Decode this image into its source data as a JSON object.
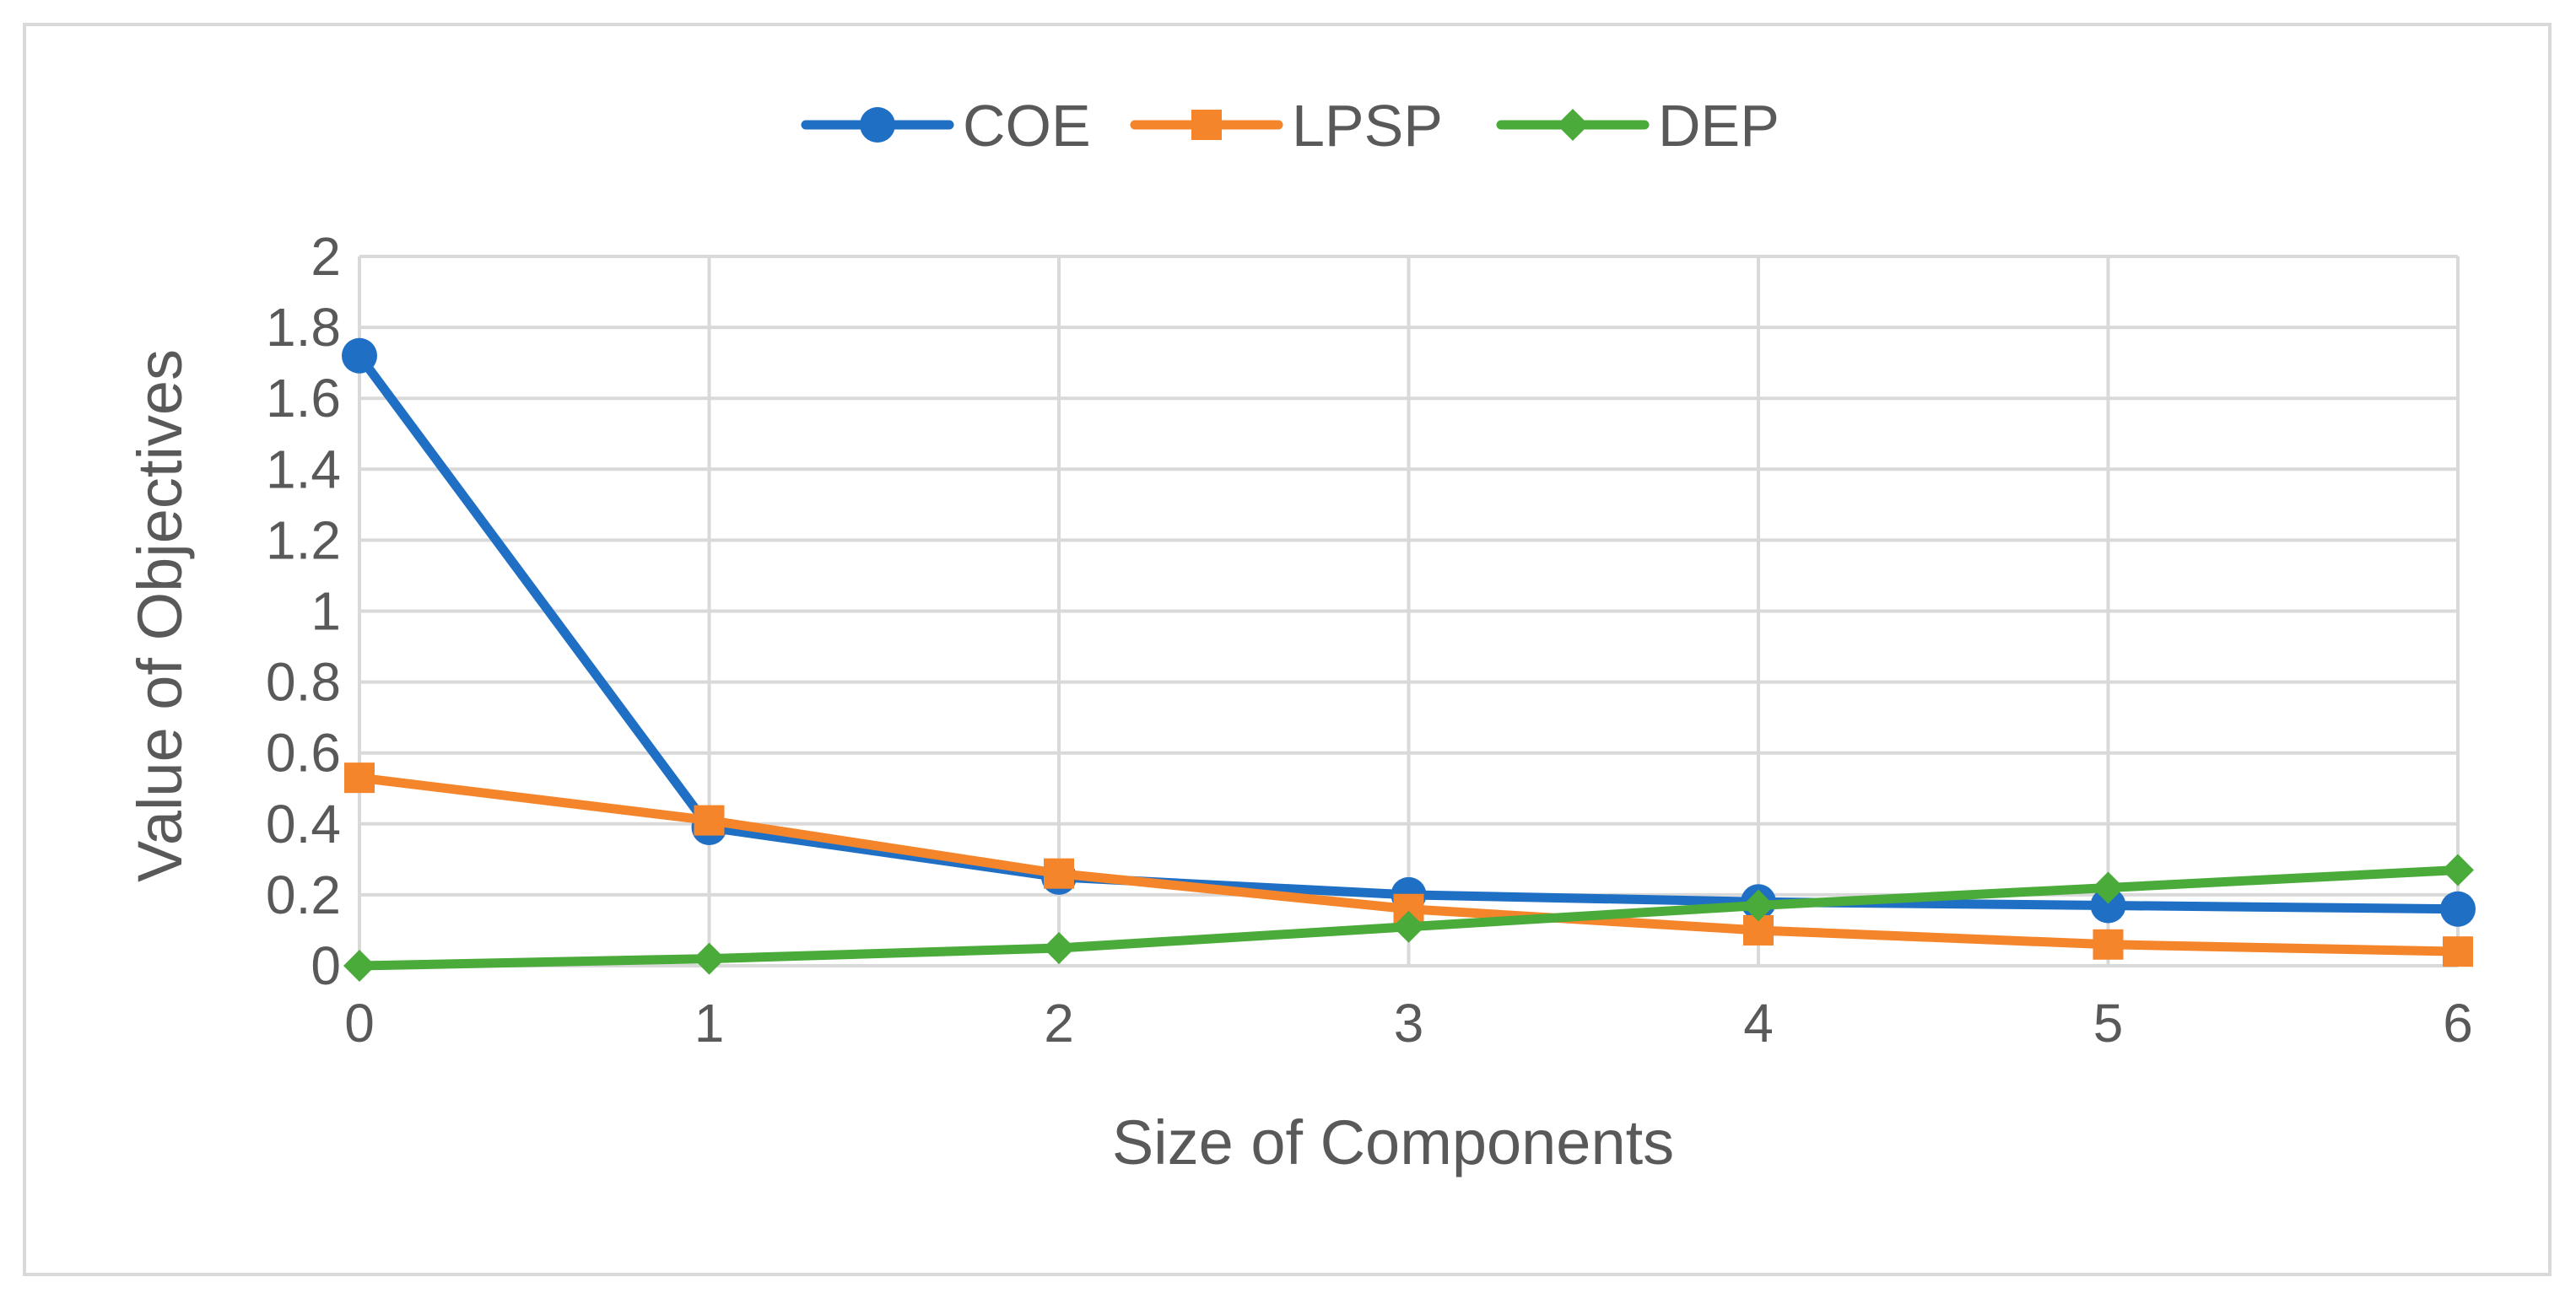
{
  "chart_data": {
    "type": "line",
    "title": "",
    "xlabel": "Size of Components",
    "ylabel": "Value of Objectives",
    "x": [
      0,
      1,
      2,
      3,
      4,
      5,
      6
    ],
    "x_tick_labels": [
      "0",
      "1",
      "2",
      "3",
      "4",
      "5",
      "6"
    ],
    "y_tick_labels": [
      "0",
      "0.2",
      "0.4",
      "0.6",
      "0.8",
      "1",
      "1.2",
      "1.4",
      "1.6",
      "1.8",
      "2"
    ],
    "ylim": [
      0,
      2
    ],
    "xlim": [
      0,
      6
    ],
    "grid": true,
    "legend_position": "top-center",
    "series": [
      {
        "name": "COE",
        "color": "#1f6fc5",
        "marker": "circle",
        "values": [
          1.72,
          0.39,
          0.25,
          0.2,
          0.18,
          0.17,
          0.16
        ]
      },
      {
        "name": "LPSP",
        "color": "#f5852a",
        "marker": "square",
        "values": [
          0.53,
          0.41,
          0.26,
          0.16,
          0.1,
          0.06,
          0.04
        ]
      },
      {
        "name": "DEP",
        "color": "#4aaa3a",
        "marker": "diamond",
        "values": [
          0.0,
          0.02,
          0.05,
          0.11,
          0.17,
          0.22,
          0.27
        ]
      }
    ]
  }
}
